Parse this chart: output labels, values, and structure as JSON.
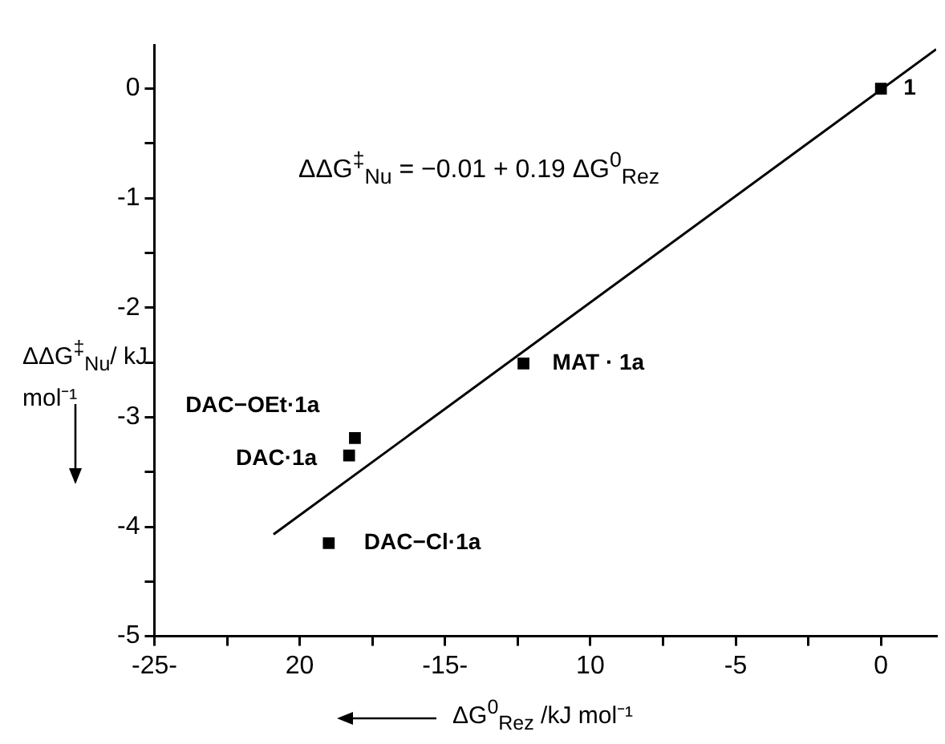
{
  "chart_data": {
    "type": "scatter",
    "xlabel": "ΔG$^{0}$$_{Rez}$ /kJ mol⁻¹",
    "ylabel": "ΔΔG$^{‡}$$_{Nu}$/ kJ mol⁻¹",
    "series": [
      {
        "type": "scatter",
        "color": "#000000",
        "marker": "square",
        "x": [
          0,
          -12.3,
          -18.1,
          -18.3,
          -19.0
        ],
        "values": [
          0,
          -2.51,
          -3.19,
          -3.35,
          -4.15
        ]
      },
      {
        "type": "line",
        "color": "#000000",
        "marker": "none",
        "line_style": "solid",
        "x": [
          -20.9,
          1.9
        ],
        "values": [
          -4.07,
          0.36
        ]
      }
    ],
    "annotations": [
      "ΔΔG$^{‡}$$_{Nu}$  = −0.01 + 0.19 ΔG$^{0}$$_{Rez}$",
      {
        "text": "1",
        "x": 0,
        "y": 0
      },
      {
        "text": "MAT · 1a",
        "x": -12.3,
        "y": -2.51
      },
      {
        "text": "DAC−OEt·1a",
        "x": -18.1,
        "y": -3.19
      },
      {
        "text": "DAC·1a",
        "x": -18.3,
        "y": -3.35
      },
      {
        "text": "DAC−Cl·1a",
        "x": -19.0,
        "y": -4.15
      }
    ],
    "xlim": [
      -25,
      1.9
    ],
    "ylim": [
      -5,
      0.4
    ],
    "xticks": [
      {
        "value": -25,
        "label": "-25-"
      },
      {
        "value": -22.5,
        "label": null
      },
      {
        "value": -20,
        "label": "20"
      },
      {
        "value": -17.5,
        "label": null
      },
      {
        "value": -15,
        "label": "-15-"
      },
      {
        "value": -12.5,
        "label": null
      },
      {
        "value": -10,
        "label": "10"
      },
      {
        "value": -7.5,
        "label": null
      },
      -5,
      {
        "value": -2.5,
        "label": null
      },
      0
    ],
    "yticks": [
      -5,
      {
        "value": -4.5,
        "label": null
      },
      -4,
      {
        "value": -3.5,
        "label": null
      },
      -3,
      {
        "value": -2.5,
        "label": null
      },
      -2,
      {
        "value": -1.5,
        "label": null
      },
      -1,
      {
        "value": -0.5,
        "label": null
      },
      0
    ],
    "grid": false,
    "legend": false
  }
}
